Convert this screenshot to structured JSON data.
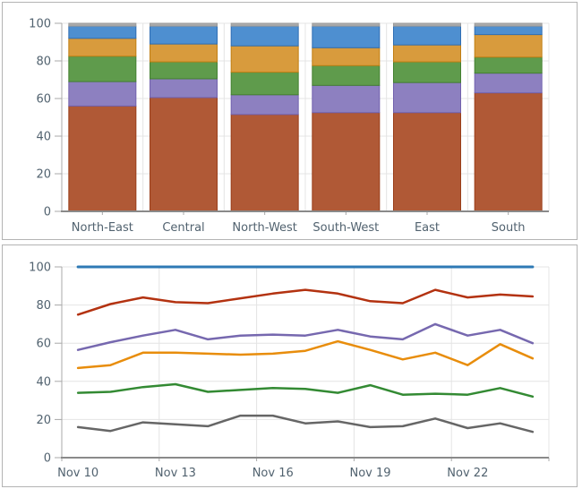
{
  "style": {
    "grid_color": "#e4e4e4",
    "axis_color": "#a8a8a8",
    "axis_strong_color": "#8a8a8a",
    "label_color": "#51626f",
    "panel_border": "#b3b3b3",
    "background": "#ffffff"
  },
  "chart_data": [
    {
      "type": "bar",
      "subtype": "stacked-100",
      "title": "",
      "xlabel": "",
      "ylabel": "",
      "ylim": [
        0,
        100
      ],
      "grid": true,
      "legend": "none",
      "y_ticks": [
        0,
        20,
        40,
        60,
        80,
        100
      ],
      "categories": [
        "North-East",
        "Central",
        "North-West",
        "South-West",
        "East",
        "South"
      ],
      "series": [
        {
          "name": "rust",
          "color": "#b05936",
          "stroke": "#9a3e1a",
          "values": [
            56,
            60.5,
            51.5,
            52.5,
            52.5,
            63
          ]
        },
        {
          "name": "purple",
          "color": "#8d80c0",
          "stroke": "#7161ad",
          "values": [
            13,
            10,
            10.5,
            14.5,
            16,
            10.5
          ]
        },
        {
          "name": "green",
          "color": "#5f9b4c",
          "stroke": "#448030",
          "values": [
            13.5,
            9,
            12,
            10.5,
            11,
            8.5
          ]
        },
        {
          "name": "orange",
          "color": "#d89b3d",
          "stroke": "#c07e13",
          "values": [
            9.5,
            9.5,
            14,
            9.5,
            9,
            12
          ]
        },
        {
          "name": "blue",
          "color": "#4e8fd0",
          "stroke": "#2f6eb4",
          "values": [
            6.5,
            9.5,
            10.5,
            11.5,
            10,
            4.5
          ]
        },
        {
          "name": "gray",
          "color": "#ababab",
          "stroke": "#9a9a9a",
          "values": [
            1.5,
            1.5,
            1.5,
            1.5,
            1.5,
            1.5
          ]
        }
      ]
    },
    {
      "type": "line",
      "title": "",
      "xlabel": "",
      "ylabel": "",
      "ylim": [
        0,
        100
      ],
      "grid": true,
      "legend": "none",
      "y_ticks": [
        0,
        20,
        40,
        60,
        80,
        100
      ],
      "x_categories": [
        "Nov 10",
        "Nov 11",
        "Nov 12",
        "Nov 13",
        "Nov 14",
        "Nov 15",
        "Nov 16",
        "Nov 17",
        "Nov 18",
        "Nov 19",
        "Nov 20",
        "Nov 21",
        "Nov 22",
        "Nov 23",
        "Nov 24"
      ],
      "x_axis_labels": [
        "Nov 10",
        "Nov 13",
        "Nov 16",
        "Nov 19",
        "Nov 22"
      ],
      "x_label_step": 3,
      "series": [
        {
          "name": "blue",
          "color": "#2e79b5",
          "width": 3,
          "values": [
            100,
            100,
            100,
            100,
            100,
            100,
            100,
            100,
            100,
            100,
            100,
            100,
            100,
            100,
            100
          ]
        },
        {
          "name": "red",
          "color": "#b33210",
          "width": 2.5,
          "values": [
            75,
            80.5,
            84,
            81.5,
            81,
            83.5,
            86,
            88,
            86,
            82,
            81,
            88,
            84,
            85.5,
            84.5
          ]
        },
        {
          "name": "purple",
          "color": "#7668af",
          "width": 2.5,
          "values": [
            56.5,
            60.5,
            64,
            67,
            62,
            64,
            64.5,
            64,
            67,
            63.5,
            62,
            70,
            64,
            67,
            60
          ]
        },
        {
          "name": "orange",
          "color": "#e88d0c",
          "width": 2.5,
          "values": [
            47,
            48.5,
            55,
            55,
            54.5,
            54,
            54.5,
            56,
            61,
            56.5,
            51.5,
            55,
            48.5,
            59.5,
            52
          ]
        },
        {
          "name": "green",
          "color": "#338a33",
          "width": 2.5,
          "values": [
            34,
            34.5,
            37,
            38.5,
            34.5,
            35.5,
            36.5,
            36,
            34,
            38,
            33,
            33.5,
            33,
            36.5,
            32
          ]
        },
        {
          "name": "gray",
          "color": "#666666",
          "width": 2.5,
          "values": [
            16,
            14,
            18.5,
            17.5,
            16.5,
            22,
            22,
            18,
            19,
            16,
            16.5,
            20.5,
            15.5,
            18,
            13.5
          ]
        }
      ]
    }
  ]
}
